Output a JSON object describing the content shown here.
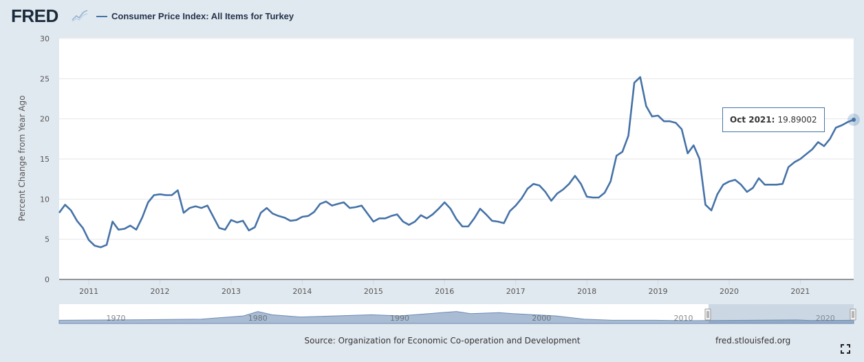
{
  "header": {
    "logo_text": "FRED",
    "series_label": "Consumer Price Index: All Items for Turkey"
  },
  "colors": {
    "series": "#4572a7",
    "background": "#e1e9f0",
    "plot": "#ffffff",
    "navigator_fill": "#a9bcd4"
  },
  "footer": {
    "source": "Source: Organization for Economic Co-operation and Development",
    "site": "fred.stlouisfed.org"
  },
  "icons": {
    "logo": "fred-graph-icon",
    "fullscreen": "fullscreen-icon"
  },
  "tooltip": {
    "date": "Oct 2021:",
    "value": "19.89002"
  },
  "navigator": {
    "labels": [
      "1970",
      "1980",
      "1990",
      "2000",
      "2010",
      "2020"
    ],
    "selected_range": [
      "2010-08",
      "2021-10"
    ]
  },
  "chart_data": {
    "type": "line",
    "title": "Consumer Price Index: All Items for Turkey",
    "ylabel": "Percent Change from Year Ago",
    "xlabel": "",
    "ylim": [
      0,
      30
    ],
    "yticks": [
      0,
      5,
      10,
      15,
      20,
      25,
      30
    ],
    "xticks": [
      "2011",
      "2012",
      "2013",
      "2014",
      "2015",
      "2016",
      "2017",
      "2018",
      "2019",
      "2020",
      "2021"
    ],
    "x_start": "2010-08",
    "x_end": "2021-10",
    "grid": true,
    "series": [
      {
        "name": "Consumer Price Index: All Items for Turkey",
        "frequency": "monthly",
        "values": [
          8.3,
          9.3,
          8.6,
          7.3,
          6.4,
          4.9,
          4.2,
          4.0,
          4.3,
          7.2,
          6.2,
          6.3,
          6.7,
          6.2,
          7.7,
          9.6,
          10.5,
          10.6,
          10.5,
          10.5,
          11.1,
          8.3,
          8.9,
          9.1,
          8.9,
          9.2,
          7.8,
          6.4,
          6.2,
          7.4,
          7.1,
          7.3,
          6.1,
          6.5,
          8.3,
          8.9,
          8.2,
          7.9,
          7.7,
          7.3,
          7.4,
          7.8,
          7.9,
          8.4,
          9.4,
          9.7,
          9.2,
          9.4,
          9.6,
          8.9,
          9.0,
          9.2,
          8.2,
          7.2,
          7.6,
          7.6,
          7.9,
          8.1,
          7.2,
          6.8,
          7.2,
          8.0,
          7.6,
          8.1,
          8.8,
          9.6,
          8.8,
          7.5,
          6.6,
          6.6,
          7.6,
          8.8,
          8.1,
          7.3,
          7.2,
          7.0,
          8.5,
          9.2,
          10.1,
          11.3,
          11.9,
          11.7,
          10.9,
          9.8,
          10.7,
          11.2,
          11.9,
          12.9,
          11.9,
          10.3,
          10.2,
          10.2,
          10.8,
          12.2,
          15.4,
          15.9,
          17.9,
          24.5,
          25.2,
          21.6,
          20.3,
          20.4,
          19.7,
          19.7,
          19.5,
          18.7,
          15.7,
          16.7,
          15.0,
          9.3,
          8.6,
          10.6,
          11.8,
          12.2,
          12.4,
          11.8,
          10.9,
          11.4,
          12.6,
          11.8,
          11.8,
          11.8,
          11.9,
          14.0,
          14.6,
          15.0,
          15.6,
          16.2,
          17.1,
          16.6,
          17.5,
          18.9,
          19.2,
          19.6,
          19.89
        ]
      }
    ]
  }
}
